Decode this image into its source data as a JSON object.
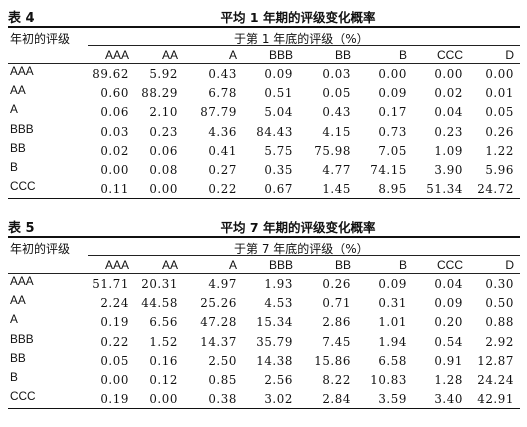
{
  "table4": {
    "label": "表    4",
    "title": "平均 1 年期的评级变化概率",
    "row_header": "年初的评级",
    "group_header": "于第 1 年底的评级（%）",
    "columns": [
      "AAA",
      "AA",
      "A",
      "BBB",
      "BB",
      "B",
      "CCC",
      "D"
    ],
    "rows": [
      {
        "label": "AAA",
        "values": [
          "89.62",
          "5.92",
          "0.43",
          "0.09",
          "0.03",
          "0.00",
          "0.00",
          "0.00"
        ]
      },
      {
        "label": "AA",
        "values": [
          "0.60",
          "88.29",
          "6.78",
          "0.51",
          "0.05",
          "0.09",
          "0.02",
          "0.01"
        ]
      },
      {
        "label": "A",
        "values": [
          "0.06",
          "2.10",
          "87.79",
          "5.04",
          "0.43",
          "0.17",
          "0.04",
          "0.05"
        ]
      },
      {
        "label": "BBB",
        "values": [
          "0.03",
          "0.23",
          "4.36",
          "84.43",
          "4.15",
          "0.73",
          "0.23",
          "0.26"
        ]
      },
      {
        "label": "BB",
        "values": [
          "0.02",
          "0.06",
          "0.41",
          "5.75",
          "75.98",
          "7.05",
          "1.09",
          "1.22"
        ]
      },
      {
        "label": "B",
        "values": [
          "0.00",
          "0.08",
          "0.27",
          "0.35",
          "4.77",
          "74.15",
          "3.90",
          "5.96"
        ]
      },
      {
        "label": "CCC",
        "values": [
          "0.11",
          "0.00",
          "0.22",
          "0.67",
          "1.45",
          "8.95",
          "51.34",
          "24.72"
        ]
      }
    ]
  },
  "table5": {
    "label": "表    5",
    "title": "平均 7 年期的评级变化概率",
    "row_header": "年初的评级",
    "group_header": "于第 7 年底的评级（%）",
    "columns": [
      "AAA",
      "AA",
      "A",
      "BBB",
      "BB",
      "B",
      "CCC",
      "D"
    ],
    "rows": [
      {
        "label": "AAA",
        "values": [
          "51.71",
          "20.31",
          "4.97",
          "1.93",
          "0.26",
          "0.09",
          "0.04",
          "0.30"
        ]
      },
      {
        "label": "AA",
        "values": [
          "2.24",
          "44.58",
          "25.26",
          "4.53",
          "0.71",
          "0.31",
          "0.09",
          "0.50"
        ]
      },
      {
        "label": "A",
        "values": [
          "0.19",
          "6.56",
          "47.28",
          "15.34",
          "2.86",
          "1.01",
          "0.20",
          "0.88"
        ]
      },
      {
        "label": "BBB",
        "values": [
          "0.22",
          "1.52",
          "14.37",
          "35.79",
          "7.45",
          "1.94",
          "0.54",
          "2.92"
        ]
      },
      {
        "label": "BB",
        "values": [
          "0.05",
          "0.16",
          "2.50",
          "14.38",
          "15.86",
          "6.58",
          "0.91",
          "12.87"
        ]
      },
      {
        "label": "B",
        "values": [
          "0.00",
          "0.12",
          "0.85",
          "2.56",
          "8.22",
          "10.83",
          "1.28",
          "24.24"
        ]
      },
      {
        "label": "CCC",
        "values": [
          "0.19",
          "0.00",
          "0.38",
          "3.02",
          "2.84",
          "3.59",
          "3.40",
          "42.91"
        ]
      }
    ]
  }
}
